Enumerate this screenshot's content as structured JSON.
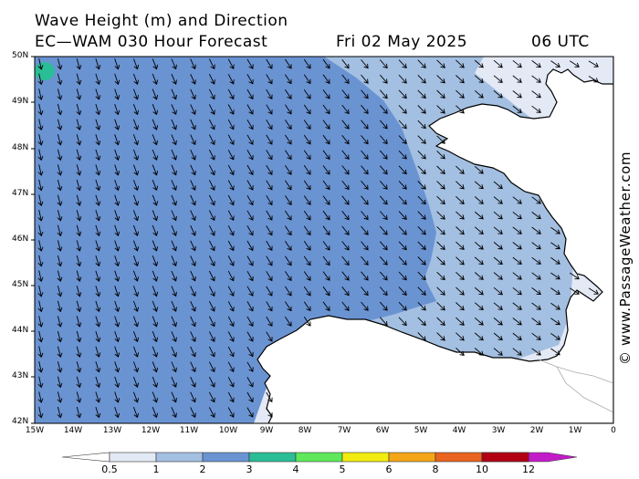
{
  "header": {
    "title": "Wave Height (m) and Direction",
    "model": "EC—WAM 030 Hour Forecast",
    "date": "Fri 02 May 2025",
    "time": "06 UTC"
  },
  "map": {
    "lat_labels": [
      "50N",
      "49N",
      "48N",
      "47N",
      "46N",
      "45N",
      "44N",
      "43N",
      "42N"
    ],
    "lon_labels": [
      "15W",
      "14W",
      "13W",
      "12W",
      "11W",
      "10W",
      "9W",
      "8W",
      "7W",
      "6W",
      "5W",
      "4W",
      "3W",
      "2W",
      "1W",
      "0"
    ],
    "extent": {
      "lon": [
        -15,
        0
      ],
      "lat": [
        42,
        50
      ]
    },
    "wave_colors": {
      "0.5-1": "#e3e9f5",
      "1-2": "#a3bfe1",
      "2-3": "#6a93d2",
      "3-4": "#2bbd95",
      "land": "#ffffff",
      "coast": "#000000"
    },
    "arrow_direction": "north-west to south-east swell"
  },
  "scale": {
    "labels": [
      "0.5",
      "1",
      "2",
      "3",
      "4",
      "5",
      "6",
      "8",
      "10",
      "12"
    ],
    "colors": [
      "#e3e9f5",
      "#a3bfe1",
      "#6a93d2",
      "#2bbd95",
      "#5ee85a",
      "#f2ec10",
      "#f5a518",
      "#e86420",
      "#e02e2e",
      "#b20012",
      "#c21cc8"
    ]
  },
  "credit": "© www.PassageWeather.com"
}
